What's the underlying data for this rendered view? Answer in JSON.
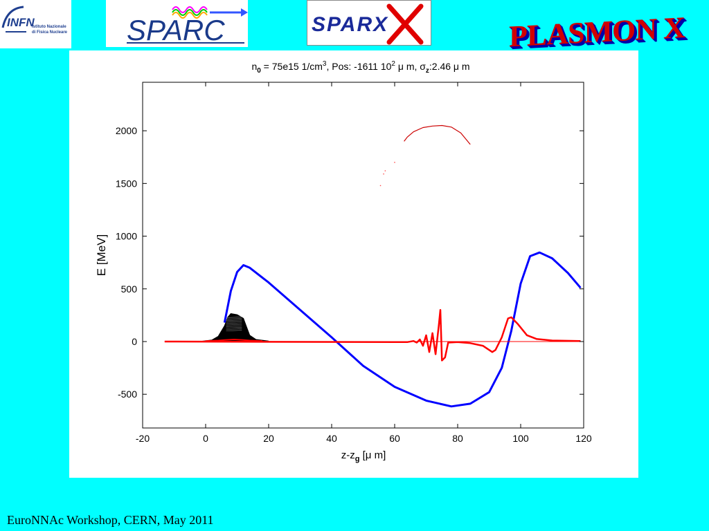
{
  "header": {
    "logos": [
      {
        "name": "INFN",
        "text": "INFN",
        "subtitle_line1": "Istituto Nazionale",
        "subtitle_line2": "di Fisica Nucleare"
      },
      {
        "name": "SPARC",
        "text": "SPARC"
      },
      {
        "name": "SPARX",
        "text": "SPARX"
      },
      {
        "name": "PLASMON X",
        "text": "PLASMON X"
      }
    ]
  },
  "chart_data": {
    "type": "line",
    "title": "n0 = 75e15 1/cm3, Pos: -1611 102 μ m, σz:2.46 μ m",
    "title_parts": {
      "n": "n",
      "n_sub": "0",
      "part1": " = 75e15 1/cm",
      "part1_sup": "3",
      "part2": ", Pos: -1611 10",
      "part2_sup": "2",
      "part3": " μ m, ",
      "sigma": "σ",
      "sigma_sub": "z",
      "part4": ":2.46 μ m"
    },
    "xlabel": "z-zg [μ m]",
    "xlabel_parts": {
      "main": "z-z",
      "sub": "g",
      "rest": " [μ m]"
    },
    "ylabel": "E [MeV]",
    "xlim": [
      -20,
      120
    ],
    "ylim": [
      -820,
      2460
    ],
    "xticks": [
      -20,
      0,
      20,
      40,
      60,
      80,
      100,
      120
    ],
    "yticks": [
      -500,
      0,
      500,
      1000,
      1500,
      2000
    ],
    "grid": false,
    "legend": "none",
    "series": [
      {
        "color": "#0000ff",
        "values": [
          [
            6,
            180
          ],
          [
            8,
            480
          ],
          [
            10,
            660
          ],
          [
            12,
            725
          ],
          [
            14,
            700
          ],
          [
            20,
            560
          ],
          [
            30,
            300
          ],
          [
            40,
            40
          ],
          [
            50,
            -230
          ],
          [
            60,
            -430
          ],
          [
            70,
            -560
          ],
          [
            78,
            -615
          ],
          [
            84,
            -590
          ],
          [
            90,
            -480
          ],
          [
            94,
            -250
          ],
          [
            97,
            100
          ],
          [
            100,
            550
          ],
          [
            103,
            810
          ],
          [
            106,
            845
          ],
          [
            110,
            790
          ],
          [
            115,
            650
          ],
          [
            119,
            510
          ]
        ]
      },
      {
        "color": "#ff0000",
        "values": [
          [
            -13,
            0
          ],
          [
            60,
            -5
          ],
          [
            64,
            -5
          ],
          [
            66,
            5
          ],
          [
            67,
            -10
          ],
          [
            68,
            20
          ],
          [
            69,
            -40
          ],
          [
            70,
            60
          ],
          [
            71,
            -100
          ],
          [
            72,
            80
          ],
          [
            73,
            -120
          ],
          [
            74,
            150
          ],
          [
            74.5,
            300
          ],
          [
            75,
            -180
          ],
          [
            76,
            -150
          ],
          [
            77,
            -10
          ],
          [
            80,
            -5
          ],
          [
            84,
            -15
          ],
          [
            88,
            -40
          ],
          [
            91,
            -100
          ],
          [
            92,
            -80
          ],
          [
            94,
            40
          ],
          [
            96,
            220
          ],
          [
            97,
            230
          ],
          [
            99,
            170
          ],
          [
            102,
            60
          ],
          [
            105,
            25
          ],
          [
            110,
            10
          ],
          [
            119,
            5
          ]
        ]
      },
      {
        "color": "#ff0000",
        "values": [
          [
            -13,
            0
          ],
          [
            119,
            0
          ]
        ]
      },
      {
        "color": "#cc0000",
        "values": [
          [
            63,
            1900
          ],
          [
            64,
            1940
          ],
          [
            66,
            1990
          ],
          [
            69,
            2030
          ],
          [
            72,
            2045
          ],
          [
            75,
            2050
          ],
          [
            78,
            2035
          ],
          [
            81,
            1980
          ],
          [
            84,
            1870
          ]
        ]
      },
      {
        "color": "#ff0000",
        "values": [
          [
            0,
            5
          ],
          [
            4,
            10
          ],
          [
            6,
            15
          ],
          [
            9,
            20
          ],
          [
            12,
            15
          ],
          [
            14,
            10
          ],
          [
            18,
            5
          ]
        ]
      }
    ],
    "bunch": {
      "color": "#000000",
      "values": [
        [
          -2,
          0
        ],
        [
          2,
          15
        ],
        [
          4,
          50
        ],
        [
          6,
          150
        ],
        [
          7,
          230
        ],
        [
          8,
          265
        ],
        [
          10,
          255
        ],
        [
          12,
          220
        ],
        [
          13,
          140
        ],
        [
          14,
          60
        ],
        [
          16,
          20
        ],
        [
          20,
          5
        ]
      ]
    },
    "scatter_points": [
      [
        60,
        1700
      ],
      [
        57,
        1620
      ],
      [
        56.5,
        1590
      ],
      [
        55.5,
        1480
      ]
    ]
  },
  "footer": {
    "text": "EuroNNAc Workshop, CERN, May 2011"
  }
}
